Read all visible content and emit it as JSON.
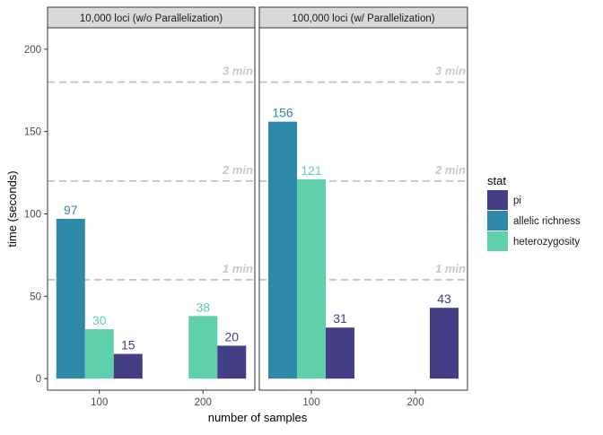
{
  "chart_data": {
    "type": "bar",
    "ylabel": "time (seconds)",
    "xlabel": "number of samples",
    "ylim": [
      -7,
      213
    ],
    "yticks": [
      0,
      50,
      100,
      150,
      200
    ],
    "categories": [
      "100",
      "200"
    ],
    "legend": {
      "title": "stat",
      "placement": "right",
      "entries": [
        {
          "name": "pi",
          "color": "#433E85"
        },
        {
          "name": "allelic richness",
          "color": "#2E89A8"
        },
        {
          "name": "heterozygosity",
          "color": "#60CFAC"
        }
      ]
    },
    "reference_lines": [
      {
        "value": 60,
        "label": "1 min"
      },
      {
        "value": 120,
        "label": "2 min"
      },
      {
        "value": 180,
        "label": "3 min"
      }
    ],
    "panels": [
      {
        "title": "10,000 loci (w/o Parallelization)",
        "bars": [
          {
            "category": "100",
            "series": "allelic richness",
            "value": 97,
            "label": "97"
          },
          {
            "category": "100",
            "series": "heterozygosity",
            "value": 30,
            "label": "30"
          },
          {
            "category": "100",
            "series": "pi",
            "value": 15,
            "label": "15"
          },
          {
            "category": "200",
            "series": "heterozygosity",
            "value": 38,
            "label": "38"
          },
          {
            "category": "200",
            "series": "pi",
            "value": 20,
            "label": "20"
          }
        ]
      },
      {
        "title": "100,000 loci (w/ Parallelization)",
        "bars": [
          {
            "category": "100",
            "series": "allelic richness",
            "value": 156,
            "label": "156"
          },
          {
            "category": "100",
            "series": "heterozygosity",
            "value": 121,
            "label": "121"
          },
          {
            "category": "100",
            "series": "pi",
            "value": 31,
            "label": "31"
          },
          {
            "category": "200",
            "series": "pi",
            "value": 43,
            "label": "43"
          }
        ]
      }
    ]
  }
}
